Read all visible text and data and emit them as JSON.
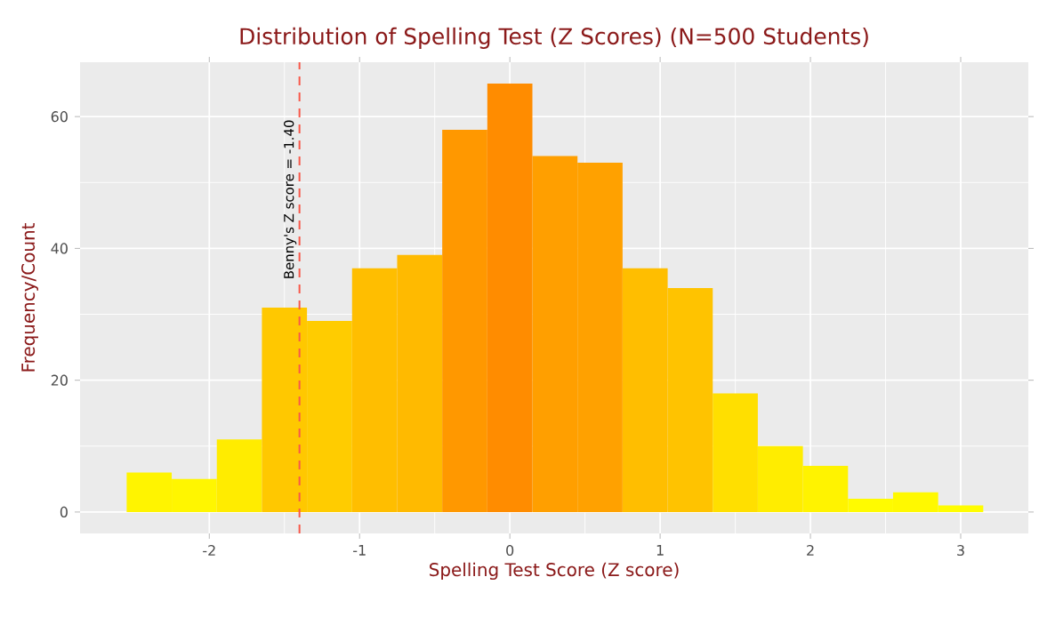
{
  "chart_data": {
    "type": "histogram",
    "title": "Distribution of Spelling Test (Z Scores)  (N=500 Students)",
    "xlabel": "Spelling Test Score (Z score)",
    "ylabel": "Frequency/Count",
    "bins": [
      -2.55,
      -2.25,
      -1.95,
      -1.65,
      -1.35,
      -1.05,
      -0.75,
      -0.45,
      -0.15,
      0.15,
      0.45,
      0.75,
      1.05,
      1.35,
      1.65,
      1.95,
      2.25,
      2.55,
      2.85,
      3.15
    ],
    "values": [
      6,
      5,
      11,
      31,
      29,
      37,
      39,
      58,
      65,
      54,
      53,
      37,
      34,
      18,
      10,
      7,
      2,
      3,
      1
    ],
    "colors": [
      "#FFF400",
      "#FFF600",
      "#FFEC00",
      "#FFC800",
      "#FFCC00",
      "#FFBE00",
      "#FFBA00",
      "#FF9800",
      "#FF8C00",
      "#FF9F00",
      "#FFA100",
      "#FFBE00",
      "#FFC300",
      "#FFDF00",
      "#FFED00",
      "#FFF300",
      "#FFFB00",
      "#FFF900",
      "#FFFD00"
    ],
    "xlim": [
      -2.86,
      3.45
    ],
    "ylim": [
      -3.25,
      68.25
    ],
    "xticks": [
      -2,
      -1,
      0,
      1,
      2,
      3
    ],
    "yticks": [
      0,
      20,
      40,
      60
    ],
    "grid": true,
    "ref_lines": [
      {
        "axis": "x",
        "value": -1.4,
        "label": "Benny's Z score = -1.40",
        "color": "#F8584A",
        "line_style": "dashed"
      }
    ]
  }
}
